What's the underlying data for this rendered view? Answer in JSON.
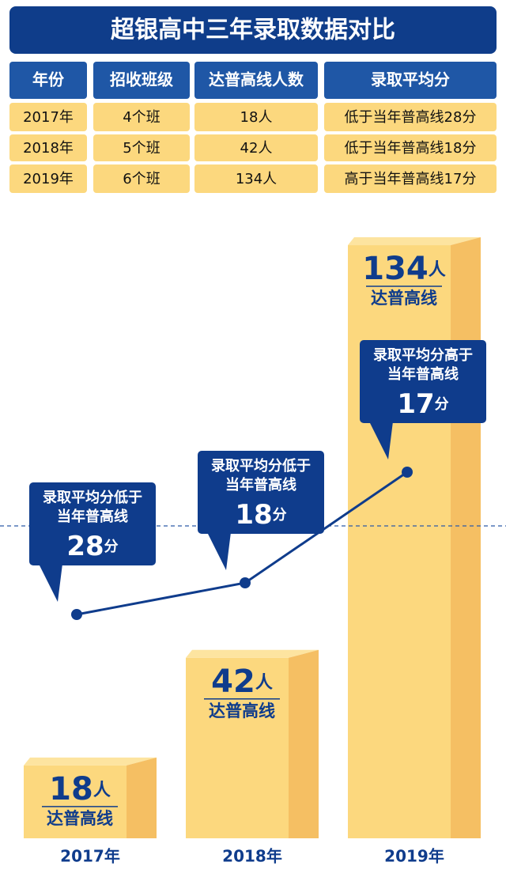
{
  "title": "超银高中三年录取数据对比",
  "table": {
    "header": [
      "年份",
      "招收班级",
      "达普高线人数",
      "录取平均分"
    ],
    "rows": [
      [
        "2017年",
        "4个班",
        "18人",
        "低于当年普高线28分"
      ],
      [
        "2018年",
        "5个班",
        "42人",
        "低于当年普高线18分"
      ],
      [
        "2019年",
        "6个班",
        "134人",
        "高于当年普高线17分"
      ]
    ]
  },
  "chart_data": [
    {
      "type": "bar",
      "categories": [
        "2017年",
        "2018年",
        "2019年"
      ],
      "values": [
        18,
        42,
        134
      ],
      "unit": "人",
      "sublabel": "达普高线",
      "color": "#fcd87e",
      "side_color": "#f5bf63",
      "ylim": [
        0,
        140
      ]
    },
    {
      "type": "line",
      "categories": [
        "2017年",
        "2018年",
        "2019年"
      ],
      "values": [
        -28,
        -18,
        17
      ],
      "value_labels": [
        "28",
        "18",
        "17"
      ],
      "unit": "分",
      "annotations": [
        [
          "录取平均分低于",
          "当年普高线"
        ],
        [
          "录取平均分低于",
          "当年普高线"
        ],
        [
          "录取平均分高于",
          "当年普高线"
        ]
      ],
      "color": "#0f3c8c",
      "reference_line": 0,
      "ylim": [
        -100,
        100
      ]
    }
  ]
}
